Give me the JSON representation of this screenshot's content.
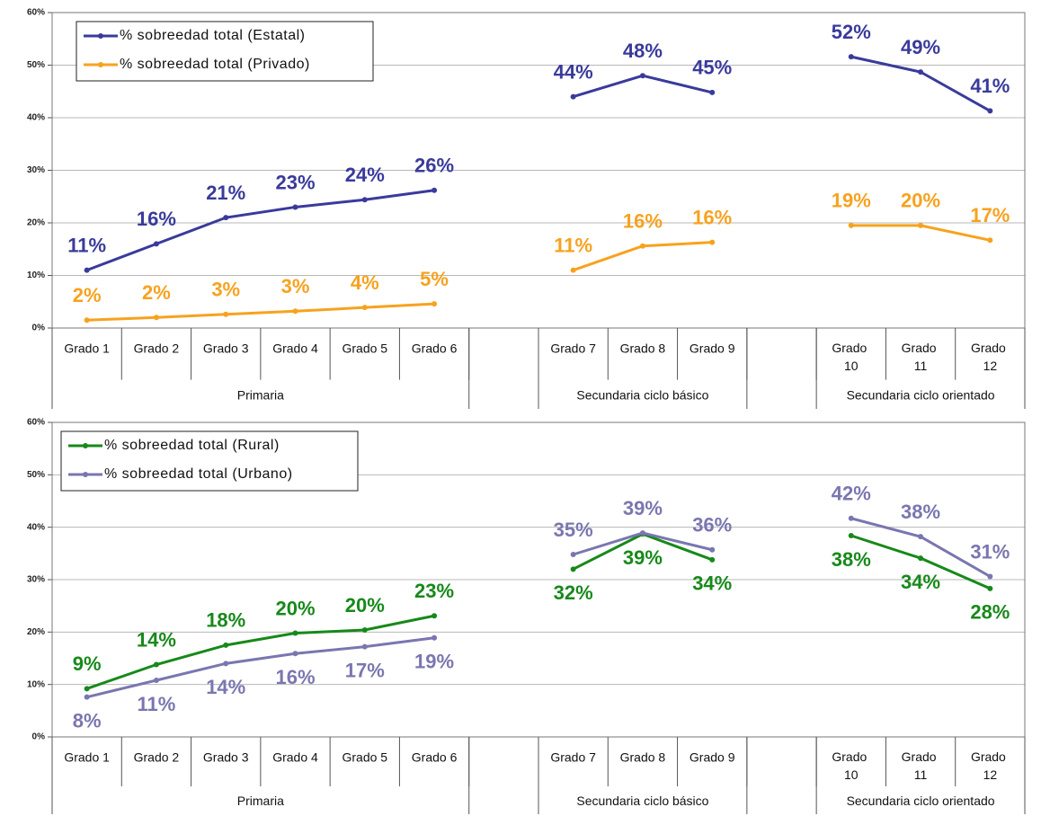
{
  "chart_data": [
    {
      "type": "line",
      "legend": "upper left",
      "grid": true,
      "categories": [
        "Grado 1",
        "Grado 2",
        "Grado 3",
        "Grado 4",
        "Grado 5",
        "Grado 6",
        null,
        "Grado 7",
        "Grado 8",
        "Grado 9",
        null,
        "Grado 10",
        "Grado 11",
        "Grado 12"
      ],
      "groups": [
        {
          "label": "Primaria",
          "start": 0,
          "end": 5
        },
        {
          "label": "Secundaria ciclo básico",
          "start": 7,
          "end": 9
        },
        {
          "label": "Secundaria ciclo orientado",
          "start": 11,
          "end": 13
        }
      ],
      "ylim": [
        0,
        60
      ],
      "yticks": [
        {
          "value": 0,
          "label": "0%"
        },
        {
          "value": 10,
          "label": "10%"
        },
        {
          "value": 20,
          "label": "20%"
        },
        {
          "value": 30,
          "label": "30%"
        },
        {
          "value": 40,
          "label": "40%"
        },
        {
          "value": 50,
          "label": "50%"
        },
        {
          "value": 60,
          "label": "60%"
        }
      ],
      "series": [
        {
          "name": "% sobreedad total (Estatal)",
          "color": "#3a3a9c",
          "values": [
            11,
            16,
            21,
            23,
            24.4,
            26.2,
            null,
            44,
            48,
            44.8,
            null,
            51.6,
            48.7,
            41.3
          ],
          "value_labels": [
            "11%",
            "16%",
            "21%",
            "23%",
            "24%",
            "26%",
            null,
            "44%",
            "48%",
            "45%",
            null,
            "52%",
            "49%",
            "41%"
          ]
        },
        {
          "name": "% sobreedad total (Privado)",
          "color": "#f7a21e",
          "values": [
            1.5,
            2,
            2.6,
            3.2,
            3.9,
            4.6,
            null,
            11,
            15.6,
            16.3,
            null,
            19.5,
            19.5,
            16.7
          ],
          "value_labels": [
            "2%",
            "2%",
            "3%",
            "3%",
            "4%",
            "5%",
            null,
            "11%",
            "16%",
            "16%",
            null,
            "19%",
            "20%",
            "17%"
          ]
        }
      ]
    },
    {
      "type": "line",
      "legend": "upper left",
      "grid": true,
      "categories": [
        "Grado 1",
        "Grado 2",
        "Grado 3",
        "Grado 4",
        "Grado 5",
        "Grado 6",
        null,
        "Grado 7",
        "Grado 8",
        "Grado 9",
        null,
        "Grado 10",
        "Grado 11",
        "Grado 12"
      ],
      "groups": [
        {
          "label": "Primaria",
          "start": 0,
          "end": 5
        },
        {
          "label": "Secundaria ciclo básico",
          "start": 7,
          "end": 9
        },
        {
          "label": "Secundaria ciclo orientado",
          "start": 11,
          "end": 13
        }
      ],
      "ylim": [
        0,
        60
      ],
      "yticks": [
        {
          "value": 0,
          "label": "0%"
        },
        {
          "value": 10,
          "label": "10%"
        },
        {
          "value": 20,
          "label": "20%"
        },
        {
          "value": 30,
          "label": "30%"
        },
        {
          "value": 40,
          "label": "40%"
        },
        {
          "value": 50,
          "label": "50%"
        },
        {
          "value": 60,
          "label": "60%"
        }
      ],
      "series": [
        {
          "name": "% sobreedad total (Rural)",
          "color": "#17891a",
          "values": [
            9.2,
            13.8,
            17.5,
            19.8,
            20.4,
            23.1,
            null,
            32,
            38.7,
            33.8,
            null,
            38.4,
            34.1,
            28.3
          ],
          "value_labels": [
            "9%",
            "14%",
            "18%",
            "20%",
            "20%",
            "23%",
            null,
            "32%",
            "39%",
            "34%",
            null,
            "38%",
            "34%",
            "28%"
          ]
        },
        {
          "name": "% sobreedad total (Urbano)",
          "color": "#7a76b0",
          "values": [
            7.6,
            10.8,
            14,
            15.9,
            17.2,
            18.9,
            null,
            34.8,
            38.9,
            35.7,
            null,
            41.7,
            38.2,
            30.6
          ],
          "value_labels": [
            "8%",
            "11%",
            "14%",
            "16%",
            "17%",
            "19%",
            null,
            "35%",
            "39%",
            "36%",
            null,
            "42%",
            "38%",
            "31%"
          ]
        }
      ]
    }
  ]
}
